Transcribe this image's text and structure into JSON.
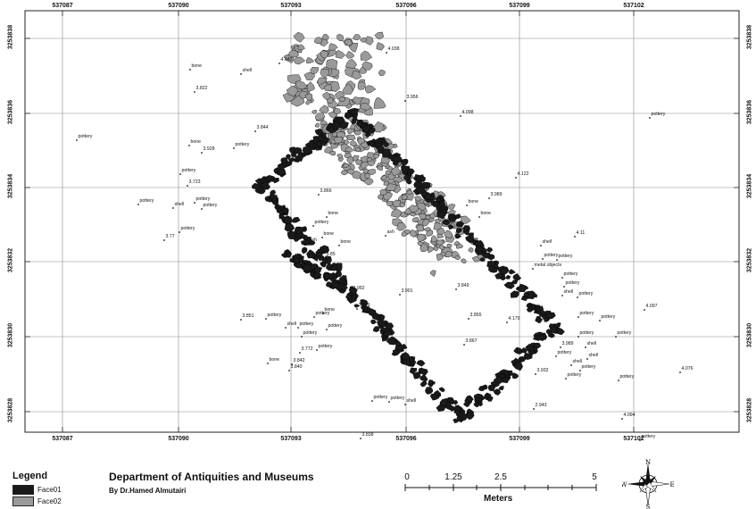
{
  "map": {
    "grid_x_labels": [
      "537087",
      "537090",
      "537093",
      "537096",
      "537099",
      "537102"
    ],
    "grid_y_labels": [
      "3253838",
      "3253836",
      "3253834",
      "3253832",
      "3253830",
      "3253828"
    ],
    "feature_labels": [
      "4.042",
      "shell",
      "bone",
      "3.822",
      "4.038",
      "3.956",
      "4.098",
      "pottery",
      "3.844",
      "pottery",
      "bone",
      "3.928",
      "pottery",
      "pottery",
      "3.723",
      "pottery",
      "shell",
      "pottery",
      "pottery",
      "3.77",
      "pottery",
      "3.866",
      "bone",
      "ash",
      "pottery",
      "bone",
      "bone",
      "3.85",
      "ash",
      "4.122",
      "3.989",
      "4.11",
      "bone",
      "bone",
      "shell",
      "pottery",
      "pottery",
      "metal objects",
      "pottery",
      "pottery",
      "pottery",
      "shell",
      "3.992",
      "3.901",
      "3.849",
      "3.839",
      "3.851",
      "pottery",
      "pottery",
      "shell",
      "bone",
      "pottery",
      "3.855",
      "4.179",
      "3.867",
      "3.989",
      "4.097",
      "pottery",
      "pottery",
      "shell",
      "3.842",
      "3.840",
      "3.772",
      "bone",
      "pottery",
      "pottery",
      "shell",
      "4.076",
      "3.932",
      "2.943",
      "4.094",
      "pottery",
      "3.838",
      "pottery",
      "pottery",
      "shell",
      "pottery",
      "pottery",
      "pottery",
      "pottery",
      "shell",
      "pottery",
      "pottery",
      "pottery"
    ]
  },
  "legend": {
    "title": "Legend",
    "items": [
      {
        "label": "Face01",
        "color": "#1a1a1a"
      },
      {
        "label": "Face02",
        "color": "#9a9a9a"
      }
    ]
  },
  "credits": {
    "title": "Department of Antiquities and Museums",
    "author": "By Dr.Hamed Almutairi"
  },
  "scalebar": {
    "labels": [
      "0",
      "1.25",
      "2.5",
      "5"
    ],
    "unit": "Meters"
  },
  "north_arrow": {
    "n": "N",
    "s": "S",
    "e": "E",
    "w": "W"
  }
}
